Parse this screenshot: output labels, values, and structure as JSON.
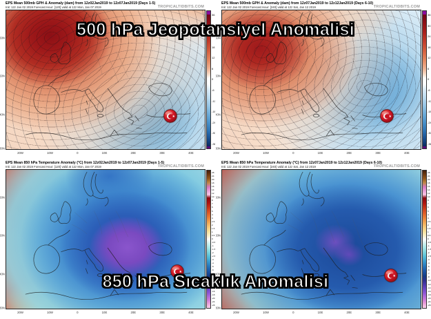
{
  "overlay_titles": {
    "top": "500 hPa Jeopotansiyel Anomalisi",
    "bottom": "850 hPa Sıcaklık Anomalisi"
  },
  "watermark": "TROPICALTIDBITS.COM",
  "axes": {
    "lat_labels": [
      "60N",
      "50N",
      "40N",
      "30N"
    ],
    "lon_labels": [
      "20W",
      "10W",
      "0",
      "10E",
      "20E",
      "30E",
      "40E"
    ]
  },
  "colorbars": {
    "gph": {
      "unit": "dam",
      "labels": [
        "36",
        "30",
        "24",
        "18",
        "12",
        "6",
        "0",
        "-6",
        "-12",
        "-18",
        "-24",
        "-30",
        "-36"
      ]
    },
    "temp": {
      "unit": "°C",
      "labels": [
        "28",
        "24",
        "20",
        "18",
        "16",
        "14",
        "12",
        "10",
        "8",
        "7",
        "6",
        "5",
        "4",
        "3",
        "2.5",
        "2",
        "1.5",
        "1",
        "0.5",
        "0",
        "-0.5",
        "-1",
        "-1.5",
        "-2",
        "-2.5",
        "-3",
        "-4",
        "-5",
        "-6",
        "-7",
        "-8",
        "-10",
        "-12",
        "-14",
        "-16",
        "-18",
        "-20",
        "-24",
        "-28"
      ]
    }
  },
  "panels": [
    {
      "id": "gph-days1-5",
      "title": "EPS Mean 500mb GPH & Anomaly (dam) from 12z02Jan2019 to 12z07Jan2019 (Days 1-5)",
      "init_line": "Init: 12z Jan 02 2019   Forecast Hour: [120]   valid at 12z Mon, Jan 07 2019"
    },
    {
      "id": "gph-days6-10",
      "title": "EPS Mean 500mb GPH & Anomaly (dam) from 12z07Jan2019 to 12z12Jan2019 (Days 6-10)",
      "init_line": "Init: 12z Jan 02 2019   Forecast Hour: [240]   valid at 12z Sat, Jan 12 2019"
    },
    {
      "id": "temp-days1-5",
      "title": "EPS Mean 850 hPa Temperature Anomaly (°C) from 12z02Jan2019 to 12z07Jan2019 (Days 1-5)",
      "init_line": "Init: 12z Jan 02 2019   Forecast Hour: [120]   valid at 12z Mon, Jan 07 2019"
    },
    {
      "id": "temp-days6-10",
      "title": "EPS Mean 850 hPa Temperature Anomaly (°C) from 12z07Jan2019 to 12z12Jan2019 (Days 6-10)",
      "init_line": "Init: 12z Jan 02 2019   Forecast Hour: [240]   valid at 12z Sat, Jan 12 2019"
    }
  ],
  "marker": {
    "name": "turkey-flag-badge"
  }
}
